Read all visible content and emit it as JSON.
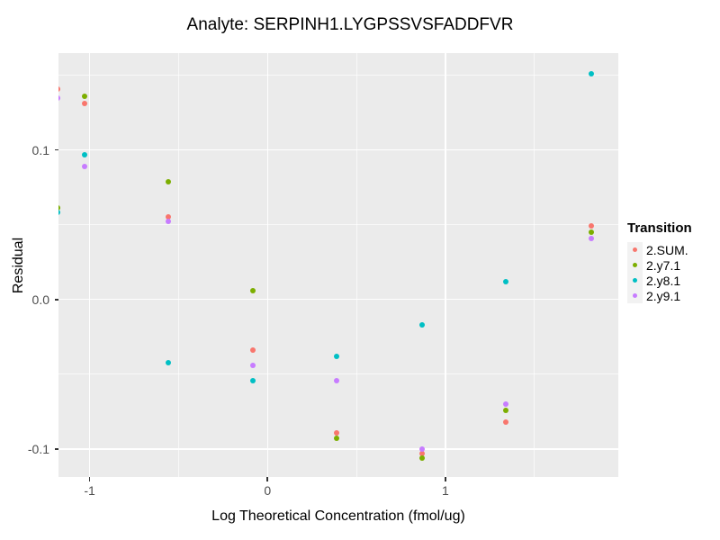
{
  "title": "Analyte: SERPINH1.LYGPSSVSFADDFVR",
  "chart_data": {
    "type": "scatter",
    "title": "Analyte: SERPINH1.LYGPSSVSFADDFVR",
    "xlabel": "Log Theoretical Concentration (fmol/ug)",
    "ylabel": "Residual",
    "panel_bg": "#EBEBEB",
    "grid_color": "#FFFFFF",
    "x_axis": {
      "min": -1.175,
      "max": 1.972,
      "major_ticks": [
        -1,
        0,
        1
      ],
      "tick_labels": [
        "-1",
        "0",
        "1"
      ],
      "minor_ticks": [
        -0.5,
        0.5,
        1.5
      ]
    },
    "y_axis": {
      "min": -0.1187,
      "max": 0.1648,
      "major_ticks": [
        0.1,
        0.0,
        -0.1
      ],
      "tick_labels": [
        "0.1",
        "0.0",
        "-0.1"
      ],
      "minor_ticks": [
        0.15,
        0.05,
        -0.05
      ]
    },
    "legend": {
      "title": "Transition",
      "position": "right"
    },
    "series": [
      {
        "name": "2.SUM.",
        "color": "#F8766D",
        "points": [
          [
            -1.18,
            0.141
          ],
          [
            -1.03,
            0.131
          ],
          [
            -0.56,
            0.055
          ],
          [
            -0.08,
            -0.034
          ],
          [
            0.39,
            -0.089
          ],
          [
            0.87,
            -0.103
          ],
          [
            1.34,
            -0.082
          ],
          [
            1.82,
            0.049
          ]
        ]
      },
      {
        "name": "2.y7.1",
        "color": "#7CAE00",
        "points": [
          [
            -1.18,
            0.061
          ],
          [
            -1.03,
            0.136
          ],
          [
            -0.56,
            0.079
          ],
          [
            -0.08,
            0.006
          ],
          [
            0.39,
            -0.093
          ],
          [
            0.87,
            -0.106
          ],
          [
            1.34,
            -0.074
          ],
          [
            1.82,
            0.045
          ]
        ]
      },
      {
        "name": "2.y8.1",
        "color": "#00BFC4",
        "points": [
          [
            -1.18,
            0.058
          ],
          [
            -1.03,
            0.097
          ],
          [
            -0.56,
            -0.042
          ],
          [
            -0.08,
            -0.054
          ],
          [
            0.39,
            -0.038
          ],
          [
            0.87,
            -0.017
          ],
          [
            1.34,
            0.012
          ],
          [
            1.82,
            0.151
          ]
        ]
      },
      {
        "name": "2.y9.1",
        "color": "#C77CFF",
        "points": [
          [
            -1.18,
            0.135
          ],
          [
            -1.03,
            0.089
          ],
          [
            -0.56,
            0.052
          ],
          [
            -0.08,
            -0.044
          ],
          [
            0.39,
            -0.054
          ],
          [
            0.87,
            -0.1
          ],
          [
            1.34,
            -0.07
          ],
          [
            1.82,
            0.041
          ]
        ]
      }
    ]
  }
}
